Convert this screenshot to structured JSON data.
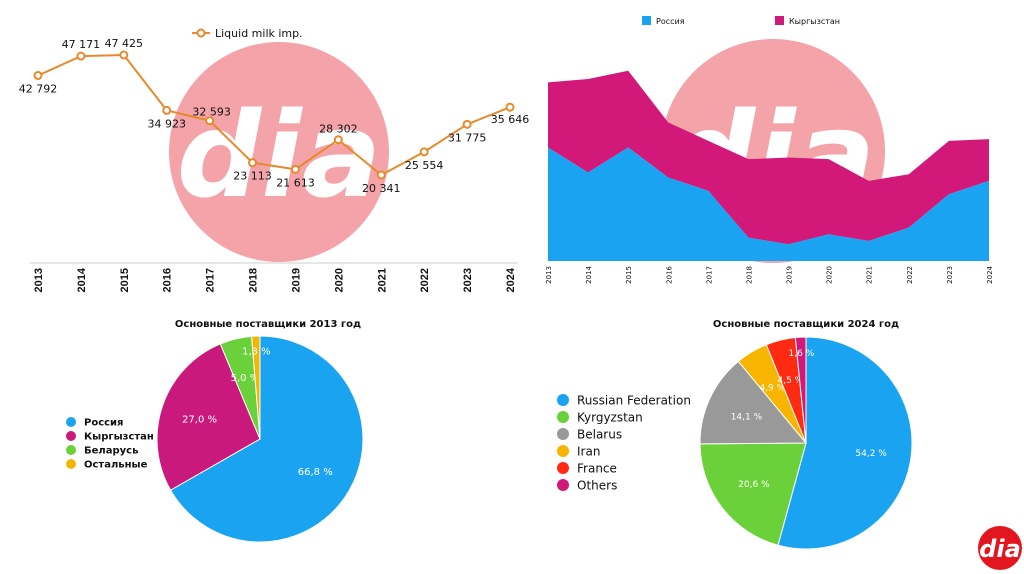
{
  "brand": {
    "logo_text": "dia",
    "watermark_color": "#f4a3a8",
    "logo_color": "#e3151e"
  },
  "chart_data": [
    {
      "type": "line",
      "legend": "Liquid milk imp.",
      "color": "#e8892b",
      "categories": [
        "2013",
        "2014",
        "2015",
        "2016",
        "2017",
        "2018",
        "2019",
        "2020",
        "2021",
        "2022",
        "2023",
        "2024"
      ],
      "values": [
        42792,
        47171,
        47425,
        34923,
        32593,
        23113,
        21613,
        28302,
        20341,
        25554,
        31775,
        35646
      ],
      "value_labels": [
        "42 792",
        "47 171",
        "47 425",
        "34 923",
        "32 593",
        "23 113",
        "21 613",
        "28 302",
        "20 341",
        "25 554",
        "31 775",
        "35 646"
      ]
    },
    {
      "type": "area",
      "stacked": true,
      "categories": [
        "2013",
        "2014",
        "2015",
        "2016",
        "2017",
        "2018",
        "2019",
        "2020",
        "2021",
        "2022",
        "2023",
        "2024"
      ],
      "series": [
        {
          "name": "Россия",
          "color": "#1aa3f0",
          "values": [
            68,
            53,
            68,
            50,
            42,
            14,
            10,
            16,
            12,
            20,
            40,
            48
          ]
        },
        {
          "name": "Кыргызстан",
          "color": "#d2197a",
          "values": [
            39,
            56,
            46,
            33,
            30,
            47,
            52,
            45,
            36,
            32,
            32,
            25
          ]
        }
      ],
      "ylim": [
        0,
        130
      ]
    },
    {
      "type": "pie",
      "title": "Основные поставщики 2013 год",
      "legend_position": "left",
      "slices": [
        {
          "name": "Россия",
          "value": 66.8,
          "label": "66,8 %",
          "color": "#1aa3f0"
        },
        {
          "name": "Кыргызстан",
          "value": 27.0,
          "label": "27,0 %",
          "color": "#c9197c"
        },
        {
          "name": "Беларусь",
          "value": 5.0,
          "label": "5,0 %",
          "color": "#6bd13a"
        },
        {
          "name": "Остальные",
          "value": 1.3,
          "label": "1,3 %",
          "color": "#f2b705"
        }
      ]
    },
    {
      "type": "pie",
      "title": "Основные поставщики 2024 год",
      "legend_position": "left",
      "slices": [
        {
          "name": "Russian Federation",
          "value": 54.2,
          "label": "54,2 %",
          "color": "#1aa3f0"
        },
        {
          "name": "Kyrgyzstan",
          "value": 20.6,
          "label": "20,6 %",
          "color": "#6bd13a"
        },
        {
          "name": "Belarus",
          "value": 14.1,
          "label": "14,1 %",
          "color": "#999999"
        },
        {
          "name": "Iran",
          "value": 4.9,
          "label": "4,9 %",
          "color": "#f7b500"
        },
        {
          "name": "France",
          "value": 4.5,
          "label": "4,5 %",
          "color": "#ff2a12"
        },
        {
          "name": "Others",
          "value": 1.6,
          "label": "1,6 %",
          "color": "#d2197a"
        }
      ]
    }
  ]
}
